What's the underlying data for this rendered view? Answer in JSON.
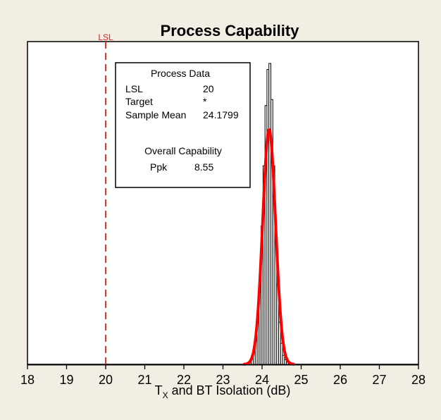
{
  "chart_data": {
    "type": "histogram",
    "title": "Process Capability",
    "xlabel": "T",
    "xlabel_subscript": "X",
    "xlabel_suffix": " and BT Isolation (dB)",
    "xlim": [
      18,
      28
    ],
    "xticks": [
      18,
      19,
      20,
      21,
      22,
      23,
      24,
      25,
      26,
      27,
      28
    ],
    "lsl": {
      "label": "LSL",
      "value": 20
    },
    "histogram": {
      "bin_width": 0.05,
      "bins": [
        {
          "x": 23.7,
          "h": 0.01
        },
        {
          "x": 23.75,
          "h": 0.02
        },
        {
          "x": 23.8,
          "h": 0.04
        },
        {
          "x": 23.85,
          "h": 0.08
        },
        {
          "x": 23.9,
          "h": 0.16
        },
        {
          "x": 23.95,
          "h": 0.28
        },
        {
          "x": 24.0,
          "h": 0.46
        },
        {
          "x": 24.05,
          "h": 0.66
        },
        {
          "x": 24.1,
          "h": 0.86
        },
        {
          "x": 24.15,
          "h": 0.98
        },
        {
          "x": 24.2,
          "h": 1.0
        },
        {
          "x": 24.25,
          "h": 0.88
        },
        {
          "x": 24.3,
          "h": 0.66
        },
        {
          "x": 24.35,
          "h": 0.45
        },
        {
          "x": 24.4,
          "h": 0.27
        },
        {
          "x": 24.45,
          "h": 0.14
        },
        {
          "x": 24.5,
          "h": 0.07
        },
        {
          "x": 24.55,
          "h": 0.03
        },
        {
          "x": 24.6,
          "h": 0.015
        },
        {
          "x": 24.65,
          "h": 0.008
        }
      ]
    },
    "fit_curve": {
      "mean": 24.1799,
      "sd": 0.165,
      "peak": 0.78,
      "color": "#ff0000"
    },
    "process_data_box": {
      "heading": "Process Data",
      "rows": [
        {
          "label": "LSL",
          "value": "20"
        },
        {
          "label": "Target",
          "value": "*"
        },
        {
          "label": "Sample Mean",
          "value": "24.1799"
        }
      ],
      "capability_heading": "Overall Capability",
      "capability_rows": [
        {
          "label": "Ppk",
          "value": "8.55"
        }
      ]
    },
    "colors": {
      "background": "#f2eee3",
      "plot_area": "#ffffff",
      "lsl_line": "#e0201b",
      "fit": "#ff0000",
      "bars": "#ffffff",
      "bar_edges": "#000000"
    }
  }
}
